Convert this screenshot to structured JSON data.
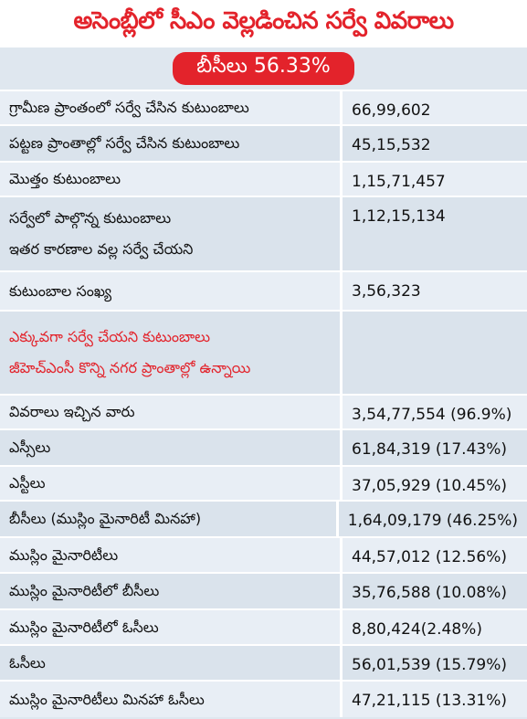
{
  "header": {
    "title": "అసెంబ్లీలో సీఎం వెల్లడించిన సర్వే వివరాలు",
    "badge": "బీసీలు 56.33%"
  },
  "table": {
    "rows": [
      {
        "label": [
          "గ్రామీణ ప్రాంతంలో సర్వే చేసిన కుటుంబాలు"
        ],
        "value": "66,99,602"
      },
      {
        "label": [
          "పట్టణ ప్రాంతాల్లో సర్వే చేసిన కుటుంబాలు"
        ],
        "value": "45,15,532"
      },
      {
        "label": [
          "మొత్తం కుటుంబాలు"
        ],
        "value": "1,15,71,457"
      },
      {
        "label": [
          "సర్వేలో పాల్గొన్న కుటుంబాలు",
          "ఇతర కారణాల వల్ల సర్వే చేయని"
        ],
        "value": "1,12,15,134"
      },
      {
        "label": [
          "కుటుంబాల సంఖ్య"
        ],
        "value": "3,56,323"
      },
      {
        "label": [
          "ఎక్కువగా సర్వే చేయని కుటుంబాలు",
          "జీహెచ్ఎంసీ కొన్ని నగర ప్రాంతాల్లో ఉన్నాయి"
        ],
        "highlight": true
      },
      {
        "label": [
          "వివరాలు ఇచ్చిన వారు"
        ],
        "value": "3,54,77,554 (96.9%)"
      },
      {
        "label": [
          "ఎస్సీలు"
        ],
        "value": "61,84,319 (17.43%)"
      },
      {
        "label": [
          "ఎస్టీలు"
        ],
        "value": "37,05,929 (10.45%)"
      },
      {
        "label": [
          "బీసీలు (ముస్లిం మైనారిటీ మినహా)"
        ],
        "value": "1,64,09,179 (46.25%)"
      },
      {
        "label": [
          "ముస్లిం మైనారిటీలు"
        ],
        "value": "44,57,012 (12.56%)"
      },
      {
        "label": [
          "ముస్లిం మైనారిటీలో బీసీలు"
        ],
        "value": "35,76,588 (10.08%)"
      },
      {
        "label": [
          "ముస్లిం మైనారిటీలో ఓసీలు"
        ],
        "value": "8,80,424(2.48%)"
      },
      {
        "label": [
          "ఓసీలు"
        ],
        "value": "56,01,539 (15.79%)"
      },
      {
        "label": [
          "ముస్లిం మైనారిటీలు మినహా ఓసీలు"
        ],
        "value": "47,21,115 (13.31%)"
      }
    ]
  }
}
